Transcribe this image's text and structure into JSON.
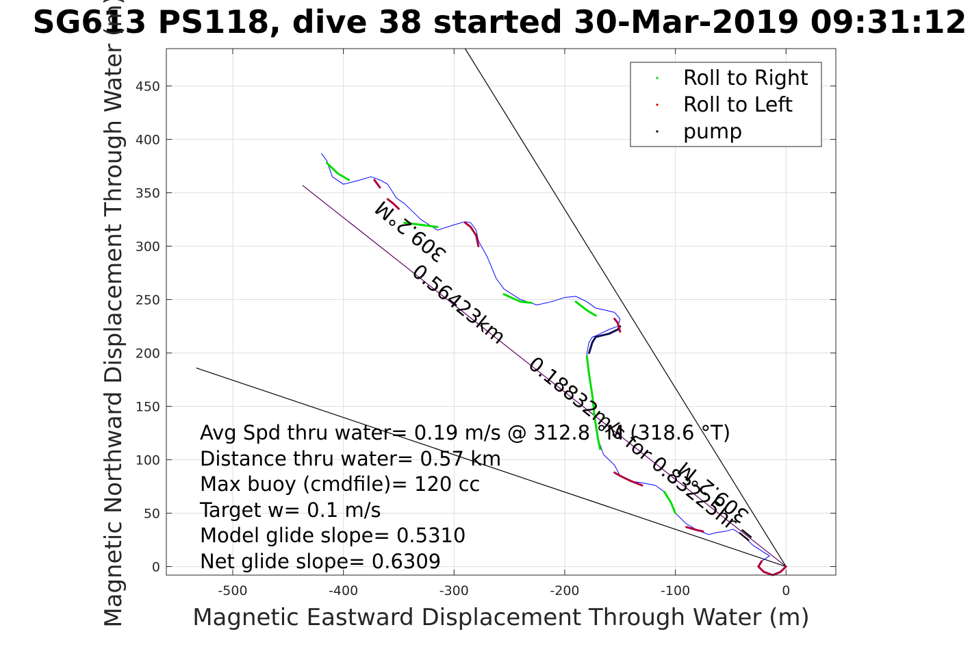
{
  "chart_data": {
    "type": "line",
    "title": "SG613 PS118, dive 38 started 30-Mar-2019 09:31:12",
    "xlabel": "Magnetic Eastward Displacement Through Water (m)",
    "ylabel": "Magnetic Northward Displacement Through Water (m)",
    "xlim": [
      -560,
      45
    ],
    "ylim": [
      -8,
      485
    ],
    "xticks": [
      -500,
      -400,
      -300,
      -200,
      -100,
      0
    ],
    "yticks": [
      0,
      50,
      100,
      150,
      200,
      250,
      300,
      350,
      400,
      450
    ],
    "xtick_labels": [
      "-500",
      "-400",
      "-300",
      "-200",
      "-100",
      "0"
    ],
    "ytick_labels": [
      "0",
      "50",
      "100",
      "150",
      "200",
      "250",
      "300",
      "350",
      "400",
      "450"
    ],
    "grid": true,
    "legend_position": "top-right",
    "legend": [
      {
        "label": "Roll to Right",
        "color": "#00dd00"
      },
      {
        "label": "Roll to Left",
        "color": "#dd0000"
      },
      {
        "label": "pump",
        "color": "#000000"
      }
    ],
    "series": [
      {
        "name": "track",
        "color": "#0000ff",
        "x": [
          0,
          -5,
          -12,
          -20,
          -25,
          -22,
          -15,
          -30,
          -40,
          -48,
          -55,
          -62,
          -70,
          -80,
          -90,
          -100,
          -104,
          -110,
          -118,
          -128,
          -140,
          -150,
          -155,
          -165,
          -170,
          -173,
          -175,
          -178,
          -180,
          -178,
          -175,
          -172,
          -168,
          -160,
          -152,
          -150,
          -155,
          -163,
          -172,
          -180,
          -190,
          -200,
          -212,
          -225,
          -240,
          -255,
          -262,
          -270,
          -278,
          -280,
          -285,
          -290,
          -300,
          -315,
          -330,
          -345,
          -352,
          -360,
          -367,
          -375,
          -385,
          -400,
          -410,
          -415,
          -420
        ],
        "y": [
          0,
          -5,
          -8,
          -5,
          0,
          5,
          10,
          20,
          30,
          35,
          33,
          32,
          30,
          34,
          40,
          50,
          60,
          70,
          76,
          78,
          80,
          85,
          95,
          105,
          120,
          140,
          160,
          180,
          200,
          210,
          215,
          216,
          218,
          222,
          225,
          232,
          238,
          240,
          242,
          248,
          253,
          252,
          248,
          245,
          250,
          260,
          270,
          290,
          305,
          315,
          322,
          323,
          320,
          315,
          325,
          340,
          345,
          358,
          362,
          365,
          362,
          358,
          365,
          380,
          387
        ]
      }
    ],
    "segments": [
      {
        "type": "left",
        "x": [
          0,
          -5,
          -12,
          -20,
          -25,
          -22
        ],
        "y": [
          0,
          -5,
          -8,
          -5,
          0,
          5
        ]
      },
      {
        "type": "left",
        "x": [
          -75,
          -80,
          -90
        ],
        "y": [
          33,
          34,
          37
        ]
      },
      {
        "type": "right",
        "x": [
          -100,
          -104,
          -110
        ],
        "y": [
          50,
          60,
          70
        ]
      },
      {
        "type": "left",
        "x": [
          -130,
          -140,
          -150,
          -155
        ],
        "y": [
          76,
          80,
          85,
          88
        ]
      },
      {
        "type": "right",
        "x": [
          -168,
          -170,
          -173,
          -175,
          -178,
          -180
        ],
        "y": [
          110,
          120,
          140,
          160,
          180,
          197
        ]
      },
      {
        "type": "pump",
        "x": [
          -178,
          -175,
          -172,
          -168,
          -160,
          -152,
          -150
        ],
        "y": [
          200,
          210,
          215,
          216,
          218,
          222,
          225
        ]
      },
      {
        "type": "left",
        "x": [
          -150,
          -152,
          -155
        ],
        "y": [
          220,
          228,
          232
        ]
      },
      {
        "type": "right",
        "x": [
          -172,
          -180,
          -190
        ],
        "y": [
          235,
          240,
          248
        ]
      },
      {
        "type": "right",
        "x": [
          -230,
          -240,
          -255
        ],
        "y": [
          247,
          248,
          255
        ]
      },
      {
        "type": "left",
        "x": [
          -278,
          -280,
          -285,
          -290
        ],
        "y": [
          300,
          310,
          318,
          322
        ]
      },
      {
        "type": "right",
        "x": [
          -315,
          -330,
          -345
        ],
        "y": [
          318,
          320,
          322
        ]
      },
      {
        "type": "left",
        "x": [
          -350,
          -355,
          -360
        ],
        "y": [
          335,
          340,
          344
        ]
      },
      {
        "type": "left",
        "x": [
          -367,
          -372
        ],
        "y": [
          355,
          362
        ]
      },
      {
        "type": "right",
        "x": [
          -395,
          -405,
          -415
        ],
        "y": [
          362,
          368,
          378
        ]
      }
    ],
    "reference_lines": [
      {
        "name": "upper-bound",
        "x": [
          0,
          -290
        ],
        "y": [
          0,
          485
        ]
      },
      {
        "name": "lower-bound",
        "x": [
          0,
          -533
        ],
        "y": [
          0,
          186
        ]
      },
      {
        "name": "heading-line",
        "x": [
          0,
          -437
        ],
        "y": [
          0,
          357
        ]
      }
    ],
    "annotations": {
      "heading_top": "309.2°M",
      "distance_label": "309.2°M  0.18832m/s for 0.83225hr =0.56423km",
      "heading_upper": "309.2°M",
      "distance_upper": "0.56423km",
      "speed_lower": "0.18832m/s for 0.83225hr =",
      "heading_lower": "309.2°M"
    },
    "stats": [
      "Avg Spd thru water=  0.19 m/s @ 312.8 °M (318.6 °T)",
      "Distance thru water=  0.57 km",
      "Max buoy (cmdfile)= 120 cc",
      "Target w= 0.1 m/s",
      "Model glide slope= 0.5310",
      "Net glide slope= 0.6309"
    ]
  }
}
